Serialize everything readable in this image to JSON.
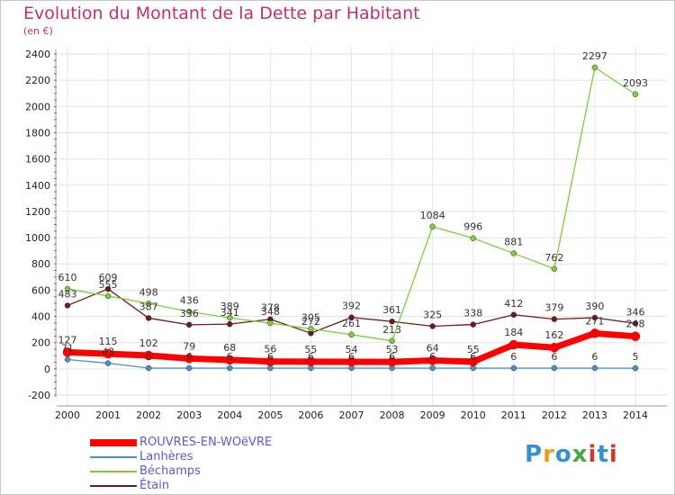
{
  "header": {
    "title": "Evolution du Montant de la Dette par Habitant",
    "subtitle": "(en €)"
  },
  "logo": {
    "text": "Proxiti",
    "colors": [
      "#3a8fd0",
      "#f29c1f",
      "#4aa844",
      "#d13b2a"
    ]
  },
  "chart_data": {
    "type": "line",
    "x": [
      2000,
      2001,
      2002,
      2003,
      2004,
      2005,
      2006,
      2007,
      2008,
      2009,
      2010,
      2011,
      2012,
      2013,
      2014
    ],
    "ylim": [
      -200,
      2400
    ],
    "yticks": [
      -200,
      0,
      200,
      400,
      600,
      800,
      1000,
      1200,
      1400,
      1600,
      1800,
      2000,
      2200,
      2400
    ],
    "grid": true,
    "legend_position": "bottom-left",
    "series": [
      {
        "name": "ROUVRES-EN-WOëVRE",
        "color": "#ff0000",
        "values": [
          127,
          115,
          102,
          79,
          68,
          56,
          55,
          54,
          53,
          64,
          55,
          184,
          162,
          271,
          248
        ]
      },
      {
        "name": "Lanhères",
        "color": "#4a90c8",
        "values": [
          71,
          43,
          6,
          6,
          6,
          6,
          6,
          6,
          6,
          6,
          6,
          6,
          6,
          6,
          5
        ]
      },
      {
        "name": "Béchamps",
        "color": "#7fcc3a",
        "values": [
          610,
          555,
          498,
          436,
          389,
          348,
          305,
          261,
          213,
          1084,
          996,
          881,
          762,
          2297,
          2093
        ]
      },
      {
        "name": "Étain",
        "color": "#6e1a1a",
        "values": [
          483,
          609,
          387,
          336,
          341,
          378,
          272,
          392,
          361,
          325,
          338,
          412,
          379,
          390,
          346
        ]
      }
    ]
  }
}
